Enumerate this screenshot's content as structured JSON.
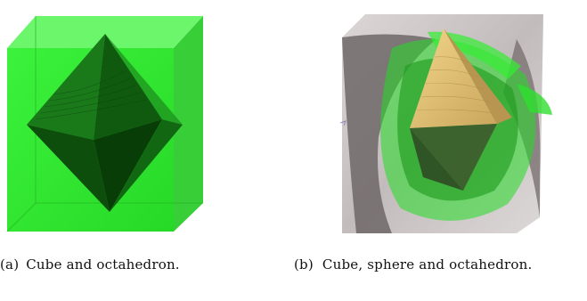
{
  "figure": {
    "panels": [
      {
        "id": "a",
        "label": "(a)",
        "caption": "Cube and octahedron.",
        "colors": {
          "cube": "#33ee33",
          "octahedron": "#0b4f0b"
        }
      },
      {
        "id": "b",
        "label": "(b)",
        "caption": "Cube, sphere and octahedron.",
        "colors": {
          "cube": "#c9c3c3",
          "sphere": "#22dd22",
          "octahedron": "#e8c878"
        }
      }
    ]
  }
}
